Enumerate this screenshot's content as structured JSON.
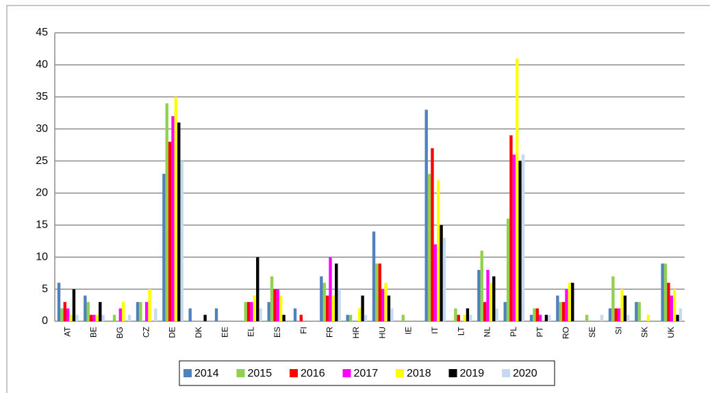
{
  "chart_data": {
    "type": "bar",
    "categories": [
      "AT",
      "BE",
      "BG",
      "CZ",
      "DE",
      "DK",
      "EE",
      "EL",
      "ES",
      "FI",
      "FR",
      "HR",
      "HU",
      "IE",
      "IT",
      "LT",
      "NL",
      "PL",
      "PT",
      "RO",
      "SE",
      "SI",
      "SK",
      "UK"
    ],
    "series": [
      {
        "name": "2014",
        "color": "#4f81bd",
        "values": [
          6,
          4,
          0,
          3,
          23,
          2,
          2,
          0,
          3,
          2,
          7,
          1,
          14,
          0,
          33,
          0,
          8,
          3,
          1,
          4,
          0,
          2,
          3,
          9
        ]
      },
      {
        "name": "2015",
        "color": "#92d050",
        "values": [
          2,
          3,
          1,
          3,
          34,
          0,
          0,
          3,
          7,
          0,
          6,
          1,
          9,
          1,
          23,
          2,
          11,
          16,
          2,
          3,
          1,
          7,
          3,
          9
        ]
      },
      {
        "name": "2016",
        "color": "#ff0000",
        "values": [
          3,
          1,
          0,
          0,
          28,
          0,
          0,
          3,
          5,
          1,
          4,
          0,
          9,
          0,
          27,
          1,
          3,
          29,
          2,
          3,
          0,
          2,
          0,
          6
        ]
      },
      {
        "name": "2017",
        "color": "#ff00ff",
        "values": [
          2,
          1,
          2,
          3,
          32,
          0,
          0,
          3,
          5,
          0,
          10,
          0,
          5,
          0,
          12,
          0,
          8,
          26,
          1,
          5,
          0,
          2,
          0,
          4
        ]
      },
      {
        "name": "2018",
        "color": "#ffff00",
        "values": [
          1,
          1,
          3,
          5,
          35,
          0,
          0,
          4,
          4,
          0,
          4,
          2,
          6,
          0,
          22,
          1,
          6,
          41,
          0,
          6,
          0,
          5,
          1,
          5
        ]
      },
      {
        "name": "2019",
        "color": "#000000",
        "values": [
          5,
          3,
          0,
          0,
          31,
          1,
          0,
          10,
          1,
          0,
          9,
          4,
          4,
          0,
          15,
          2,
          7,
          25,
          1,
          6,
          0,
          4,
          0,
          1
        ]
      },
      {
        "name": "2020",
        "color": "#c6d9f1",
        "values": [
          1,
          1,
          1,
          2,
          25,
          0,
          0,
          2,
          0,
          0,
          5,
          1,
          2,
          0,
          13,
          1,
          2,
          26,
          1,
          0,
          1,
          1,
          0,
          2
        ]
      }
    ],
    "ylim": [
      0,
      45
    ],
    "yticks": [
      0,
      5,
      10,
      15,
      20,
      25,
      30,
      35,
      40,
      45
    ],
    "grid": true,
    "legend": "bottom"
  }
}
